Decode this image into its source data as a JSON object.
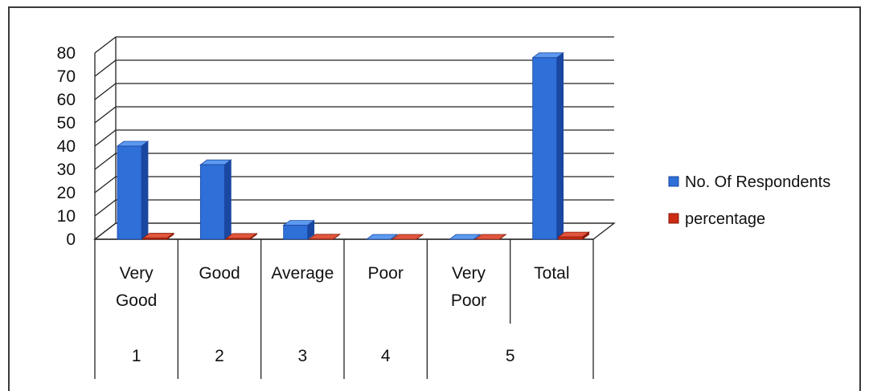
{
  "chart_data": {
    "type": "bar",
    "categories": [
      [
        "Very",
        "Good"
      ],
      [
        "Good"
      ],
      [
        "Average"
      ],
      [
        "Poor"
      ],
      [
        "Very",
        "Poor"
      ],
      [
        "Total"
      ]
    ],
    "groups": [
      {
        "label": "1",
        "span": [
          0,
          0
        ]
      },
      {
        "label": "2",
        "span": [
          1,
          1
        ]
      },
      {
        "label": "3",
        "span": [
          2,
          2
        ]
      },
      {
        "label": "4",
        "span": [
          3,
          3
        ]
      },
      {
        "label": "5",
        "span": [
          4,
          5
        ]
      }
    ],
    "series": [
      {
        "name": "No. Of Respondents",
        "values": [
          40,
          32,
          6,
          0,
          0,
          78
        ]
      },
      {
        "name": "percentage",
        "values": [
          0.5,
          0.4,
          0.08,
          0,
          0,
          1
        ]
      }
    ],
    "ylim": [
      0,
      80
    ],
    "yticks": [
      "0",
      "10",
      "20",
      "30",
      "40",
      "50",
      "60",
      "70",
      "80"
    ],
    "grid": true,
    "three_d": true,
    "legend_position": "right",
    "colors": {
      "series_0_front": "#2e6fd8",
      "series_0_side": "#1a47a0",
      "series_0_top": "#5c9af0",
      "series_1_front": "#cc2a12",
      "series_1_side": "#8a1a0a",
      "series_1_top": "#e0553c"
    }
  }
}
